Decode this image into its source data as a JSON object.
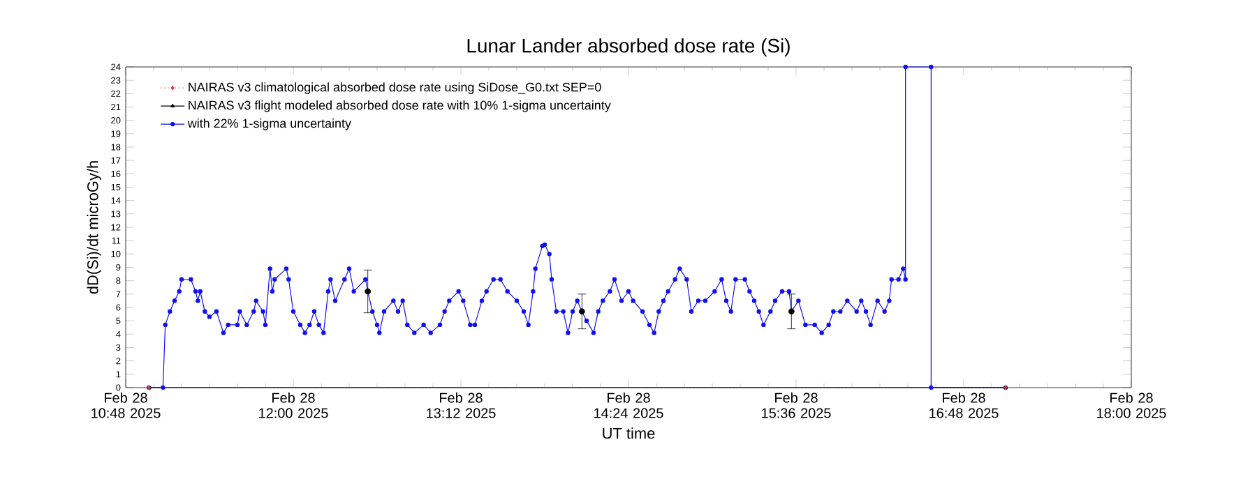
{
  "chart_data": {
    "type": "line",
    "title": "Lunar Lander absorbed dose rate (Si)",
    "xlabel": "UT time",
    "ylabel": "dD(Si)/dt microGy/h",
    "xlim": [
      "2025-02-28T10:48",
      "2025-02-28T18:00"
    ],
    "xticks": [
      {
        "value": "2025-02-28T10:48",
        "label": "Feb 28 10:48 2025"
      },
      {
        "value": "2025-02-28T12:00",
        "label": "Feb 28 12:00 2025"
      },
      {
        "value": "2025-02-28T13:12",
        "label": "Feb 28 13:12 2025"
      },
      {
        "value": "2025-02-28T14:24",
        "label": "Feb 28 14:24 2025"
      },
      {
        "value": "2025-02-28T15:36",
        "label": "Feb 28 15:36 2025"
      },
      {
        "value": "2025-02-28T16:48",
        "label": "Feb 28 16:48 2025"
      },
      {
        "value": "2025-02-28T18:00",
        "label": "Feb 28 18:00 2025"
      }
    ],
    "ylim": [
      0,
      24
    ],
    "yticks": [
      0,
      1,
      2,
      3,
      4,
      5,
      6,
      7,
      8,
      9,
      10,
      11,
      12,
      13,
      14,
      15,
      16,
      17,
      18,
      19,
      20,
      21,
      22,
      23,
      24
    ],
    "legend": "top left",
    "series": [
      {
        "name": "NAIRAS v3 climatological absorbed dose rate using SiDose_G0.txt SEP=0",
        "color": "#d04040",
        "marker": "diamond",
        "line_style": "dotted",
        "x": [
          "2025-02-28T10:58",
          "2025-02-28T17:06"
        ],
        "values": [
          0,
          0
        ]
      },
      {
        "name": "NAIRAS v3 flight modeled absorbed dose rate with 10% 1-sigma uncertainty",
        "color": "#000000",
        "marker": "triangle",
        "line_style": "solid",
        "x": [
          "2025-02-28T10:58",
          "2025-02-28T17:06"
        ],
        "values": [
          0,
          0
        ]
      },
      {
        "name": "with 22% 1-sigma uncertainty",
        "color": "#1010f0",
        "marker": "circle",
        "line_style": "solid",
        "x": [
          "2025-02-28T10:58",
          "2025-02-28T11:04",
          "2025-02-28T11:05",
          "2025-02-28T11:07",
          "2025-02-28T11:09",
          "2025-02-28T11:11",
          "2025-02-28T11:12",
          "2025-02-28T11:16",
          "2025-02-28T11:18",
          "2025-02-28T11:19",
          "2025-02-28T11:20",
          "2025-02-28T11:22",
          "2025-02-28T11:24",
          "2025-02-28T11:27",
          "2025-02-28T11:30",
          "2025-02-28T11:32",
          "2025-02-28T11:36",
          "2025-02-28T11:37",
          "2025-02-28T11:40",
          "2025-02-28T11:43",
          "2025-02-28T11:44",
          "2025-02-28T11:47",
          "2025-02-28T11:48",
          "2025-02-28T11:50",
          "2025-02-28T11:51",
          "2025-02-28T11:52",
          "2025-02-28T11:57",
          "2025-02-28T11:58",
          "2025-02-28T12:00",
          "2025-02-28T12:03",
          "2025-02-28T12:05",
          "2025-02-28T12:07",
          "2025-02-28T12:09",
          "2025-02-28T12:11",
          "2025-02-28T12:13",
          "2025-02-28T12:15",
          "2025-02-28T12:16",
          "2025-02-28T12:18",
          "2025-02-28T12:22",
          "2025-02-28T12:24",
          "2025-02-28T12:26",
          "2025-02-28T12:31",
          "2025-02-28T12:32",
          "2025-02-28T12:34",
          "2025-02-28T12:36",
          "2025-02-28T12:37",
          "2025-02-28T12:39",
          "2025-02-28T12:43",
          "2025-02-28T12:45",
          "2025-02-28T12:47",
          "2025-02-28T12:49",
          "2025-02-28T12:52",
          "2025-02-28T12:56",
          "2025-02-28T12:59",
          "2025-02-28T13:03",
          "2025-02-28T13:05",
          "2025-02-28T13:07",
          "2025-02-28T13:11",
          "2025-02-28T13:13",
          "2025-02-28T13:16",
          "2025-02-28T13:18",
          "2025-02-28T13:21",
          "2025-02-28T13:23",
          "2025-02-28T13:26",
          "2025-02-28T13:29",
          "2025-02-28T13:32",
          "2025-02-28T13:36",
          "2025-02-28T13:39",
          "2025-02-28T13:41",
          "2025-02-28T13:43",
          "2025-02-28T13:44",
          "2025-02-28T13:47",
          "2025-02-28T13:48",
          "2025-02-28T13:50",
          "2025-02-28T13:51",
          "2025-02-28T13:53",
          "2025-02-28T13:56",
          "2025-02-28T13:58",
          "2025-02-28T14:00",
          "2025-02-28T14:02",
          "2025-02-28T14:04",
          "2025-02-28T14:06",
          "2025-02-28T14:09",
          "2025-02-28T14:11",
          "2025-02-28T14:13",
          "2025-02-28T14:16",
          "2025-02-28T14:18",
          "2025-02-28T14:21",
          "2025-02-28T14:24",
          "2025-02-28T14:26",
          "2025-02-28T14:30",
          "2025-02-28T14:33",
          "2025-02-28T14:35",
          "2025-02-28T14:37",
          "2025-02-28T14:39",
          "2025-02-28T14:41",
          "2025-02-28T14:44",
          "2025-02-28T14:46",
          "2025-02-28T14:49",
          "2025-02-28T14:51",
          "2025-02-28T14:54",
          "2025-02-28T14:57",
          "2025-02-28T15:01",
          "2025-02-28T15:04",
          "2025-02-28T15:06",
          "2025-02-28T15:08",
          "2025-02-28T15:10",
          "2025-02-28T15:14",
          "2025-02-28T15:16",
          "2025-02-28T15:18",
          "2025-02-28T15:20",
          "2025-02-28T15:22",
          "2025-02-28T15:25",
          "2025-02-28T15:27",
          "2025-02-28T15:30",
          "2025-02-28T15:33",
          "2025-02-28T15:34",
          "2025-02-28T15:37",
          "2025-02-28T15:40",
          "2025-02-28T15:44",
          "2025-02-28T15:47",
          "2025-02-28T15:50",
          "2025-02-28T15:52",
          "2025-02-28T15:55",
          "2025-02-28T15:58",
          "2025-02-28T16:02",
          "2025-02-28T16:04",
          "2025-02-28T16:06",
          "2025-02-28T16:08",
          "2025-02-28T16:11",
          "2025-02-28T16:14",
          "2025-02-28T16:16",
          "2025-02-28T16:17",
          "2025-02-28T16:20",
          "2025-02-28T16:22",
          "2025-02-28T16:23",
          "2025-02-28T16:23",
          "2025-02-28T16:34",
          "2025-02-28T16:34",
          "2025-02-28T17:06"
        ],
        "values": [
          0,
          0,
          4.7,
          5.7,
          6.5,
          7.2,
          8.1,
          8.1,
          7.2,
          6.5,
          7.2,
          5.7,
          5.3,
          5.7,
          4.1,
          4.7,
          4.7,
          5.7,
          4.7,
          5.7,
          6.5,
          5.7,
          4.7,
          8.9,
          7.2,
          8.1,
          8.9,
          8.1,
          5.7,
          4.7,
          4.1,
          4.7,
          5.7,
          4.7,
          4.1,
          7.2,
          8.1,
          6.5,
          8.1,
          8.9,
          7.2,
          8.1,
          7.2,
          5.7,
          4.7,
          4.1,
          5.7,
          6.5,
          5.7,
          6.5,
          4.7,
          4.1,
          4.7,
          4.1,
          4.7,
          5.7,
          6.5,
          7.2,
          6.5,
          4.7,
          4.7,
          6.5,
          7.2,
          8.1,
          8.1,
          7.2,
          6.5,
          5.7,
          4.7,
          7.2,
          8.9,
          10.6,
          10.7,
          10.0,
          8.1,
          5.7,
          5.7,
          4.1,
          5.7,
          6.5,
          5.7,
          5.0,
          4.1,
          5.7,
          6.5,
          7.2,
          8.1,
          6.5,
          7.2,
          6.5,
          5.7,
          4.7,
          4.1,
          5.7,
          6.5,
          7.2,
          8.1,
          8.9,
          8.1,
          5.7,
          6.5,
          6.5,
          7.2,
          8.1,
          6.5,
          5.7,
          8.1,
          8.1,
          7.2,
          6.5,
          5.7,
          4.7,
          5.7,
          6.5,
          7.2,
          7.2,
          5.7,
          6.5,
          4.7,
          4.7,
          4.1,
          4.7,
          5.7,
          5.7,
          6.5,
          5.7,
          6.5,
          5.7,
          4.7,
          6.5,
          5.7,
          6.5,
          8.1,
          8.1,
          8.9,
          8.1,
          24,
          24,
          0,
          0
        ],
        "errors": [
          null,
          null,
          null,
          null,
          null,
          null,
          null,
          null,
          null,
          null,
          null,
          null,
          null,
          null,
          null,
          null,
          null,
          null,
          null,
          null,
          null,
          null,
          null,
          null,
          null,
          null,
          null,
          null,
          null,
          null,
          null,
          null,
          null,
          null,
          null,
          null,
          null,
          null,
          null,
          null,
          null,
          null,
          1.6,
          null,
          null,
          null,
          null,
          null,
          null,
          null,
          null,
          null,
          null,
          null,
          null,
          null,
          null,
          null,
          null,
          null,
          null,
          null,
          null,
          null,
          null,
          null,
          null,
          null,
          null,
          null,
          null,
          null,
          null,
          null,
          null,
          null,
          null,
          null,
          null,
          null,
          1.3,
          null,
          null,
          null,
          null,
          null,
          null,
          null,
          null,
          null,
          null,
          null,
          null,
          null,
          null,
          null,
          null,
          null,
          null,
          null,
          null,
          null,
          null,
          null,
          null,
          null,
          null,
          null,
          null,
          null,
          null,
          null,
          null,
          null,
          null,
          null,
          1.3,
          null,
          null,
          null,
          null,
          null,
          null,
          null,
          null,
          null,
          null,
          null,
          null,
          null,
          null,
          null,
          null,
          null,
          null,
          null,
          null,
          null,
          null,
          null
        ]
      }
    ]
  }
}
